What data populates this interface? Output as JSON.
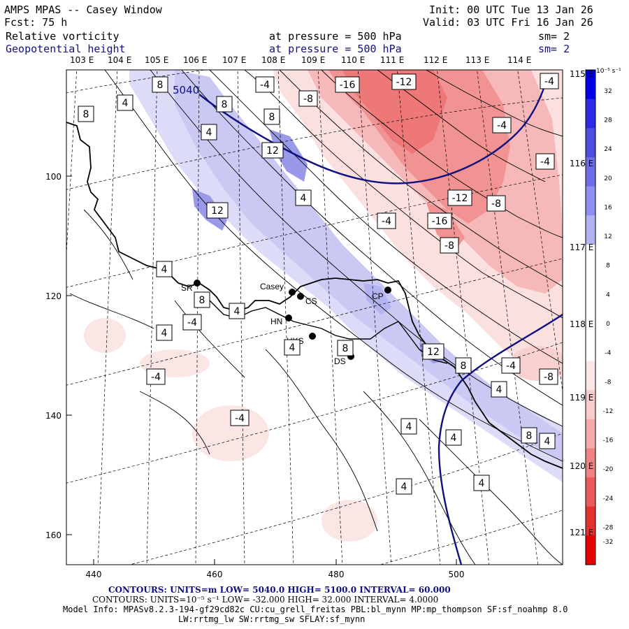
{
  "header": {
    "title": "AMPS MPAS -- Casey Window",
    "init": "Init: 00 UTC Tue 13 Jan 26",
    "fcst": "Fcst:   75 h",
    "valid": "Valid: 03 UTC Fri 16 Jan 26",
    "field1": {
      "name": "Relative vorticity",
      "level": "at pressure =  500 hPa",
      "sm": "sm= 2"
    },
    "field2": {
      "name": "Geopotential height",
      "level": "at pressure =  500 hPa",
      "sm": "sm= 2"
    }
  },
  "longitude_labels_top": [
    "103 E",
    "104 E",
    "105 E",
    "106 E",
    "107 E",
    "108 E",
    "109 E",
    "110 E",
    "111 E",
    "112 E",
    "113 E",
    "114 E"
  ],
  "longitude_labels_right": [
    "115 E",
    "116 E",
    "117 E",
    "118 E",
    "119 E",
    "120 E",
    "121 E"
  ],
  "y_axis_ticks": [
    "100",
    "120",
    "140",
    "160"
  ],
  "x_axis_ticks": [
    "440",
    "460",
    "480",
    "500"
  ],
  "stations": [
    {
      "code": "SR"
    },
    {
      "code": "Casey"
    },
    {
      "code": "CS"
    },
    {
      "code": "HN"
    },
    {
      "code": "HKS"
    },
    {
      "code": "CP"
    },
    {
      "code": "DS"
    }
  ],
  "height_contour_label": "5040",
  "vorticity_labels": {
    "negative": [
      "-16",
      "-12",
      "-4",
      "-8",
      "-4",
      "-4",
      "-12",
      "-8",
      "-16",
      "-8",
      "-4",
      "-4",
      "-4",
      "-4",
      "-4",
      "-8",
      "-4"
    ],
    "positive": [
      "8",
      "8",
      "4",
      "8",
      "12",
      "12",
      "4",
      "4",
      "8",
      "4",
      "8",
      "4",
      "12",
      "8",
      "4",
      "4",
      "4",
      "8",
      "4",
      "4",
      "4",
      "4",
      "4",
      "8"
    ]
  },
  "colorbar": {
    "units": "10⁻⁵ s⁻¹",
    "ticks": [
      "32",
      "28",
      "24",
      "20",
      "16",
      "12",
      "8",
      "4",
      "0",
      "-4",
      "-8",
      "-12",
      "-16",
      "-20",
      "-24",
      "-28",
      "-32"
    ],
    "colors": [
      "#0000e6",
      "#2a2ae6",
      "#4d4ddf",
      "#6d6de6",
      "#8f8fee",
      "#b3b3f2",
      "#ffffff",
      "#ffffff",
      "#ffffff",
      "#ffffff",
      "#fbe6e6",
      "#f8cccc",
      "#f4aaaa",
      "#ef8383",
      "#ea5a5a",
      "#e63030",
      "#e60000"
    ]
  },
  "footer": {
    "contours1": "CONTOURS:  UNITS=m   LOW=   5040.0          HIGH=  5100.0        INTERVAL=   60.000",
    "contours2": "CONTOURS:  UNITS=10⁻⁵ s⁻¹   LOW= -32.000        HIGH=  32.000        INTERVAL=   4.0000",
    "model_info": "Model Info: MPASv8.2.3-194-gf29cd82c CU:cu_grell_freitas PBL:bl_mynn MP:mp_thompson SF:sf_noahmp 8.0",
    "model_info2": "LW:rrtmg_lw SW:rrtmg_sw SFLAY:sf_mynn"
  }
}
